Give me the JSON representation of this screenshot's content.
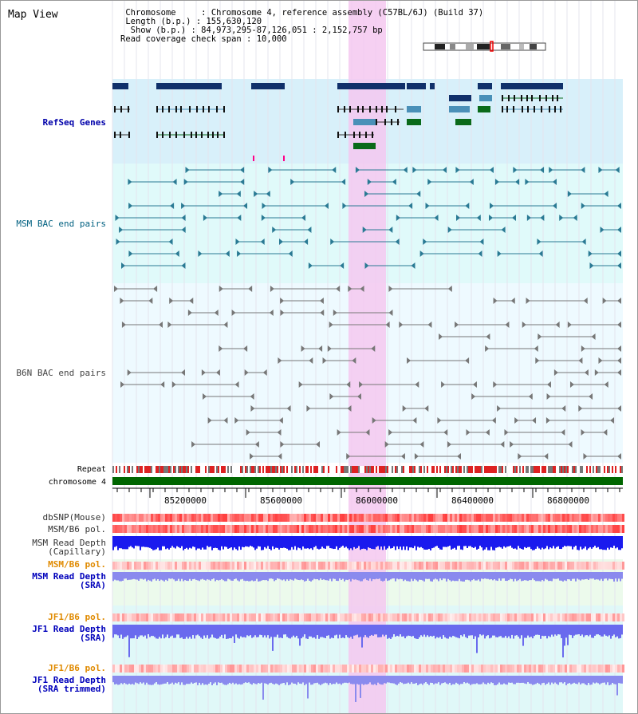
{
  "app_title": "Map View",
  "info": {
    "chromosome_key": "Chromosome",
    "chromosome_value": "Chromosome 4, reference assembly (C57BL/6J) (Build 37)",
    "length_key": "Length (b.p.)",
    "length_value": "155,630,120",
    "show_key": "Show (b.p.)",
    "show_value": "84,973,295-87,126,051 : 2,152,757 bp",
    "span_key": "Read coverage check span",
    "span_value": "10,000"
  },
  "tracks": {
    "refseq": "RefSeq Genes",
    "msm_bac": "MSM BAC end pairs",
    "b6n_bac": "B6N BAC end pairs",
    "repeat": "Repeat",
    "chromosome": "chromosome 4",
    "dbsnp": "dbSNP(Mouse)",
    "msm_pol1": "MSM/B6 pol.",
    "msm_depth_cap": "MSM Read Depth\n(Capillary)",
    "msm_pol2": "MSM/B6 pol.",
    "msm_depth_sra": "MSM Read Depth\n(SRA)",
    "jf1_pol1": "JF1/B6 pol.",
    "jf1_depth_sra": "JF1 Read Depth\n(SRA)",
    "jf1_pol2": "JF1/B6 pol.",
    "jf1_depth_trim": "JF1 Read Depth\n(SRA trimmed)"
  },
  "axis": {
    "ticks": [
      "85200000",
      "85600000",
      "86000000",
      "86400000",
      "86800000"
    ]
  },
  "colors": {
    "refseq_label": "#0000aa",
    "msm_label": "#006080",
    "b6n_label": "#444444",
    "orange_label": "#e08a00",
    "blue_label": "#0000bb",
    "highlight": "#f4c8f0",
    "refseq_bg": "#d8f0fa",
    "msm_bg": "#e0fafa",
    "b6n_bg": "#eefaff",
    "chrom_bar": "#006600"
  }
}
